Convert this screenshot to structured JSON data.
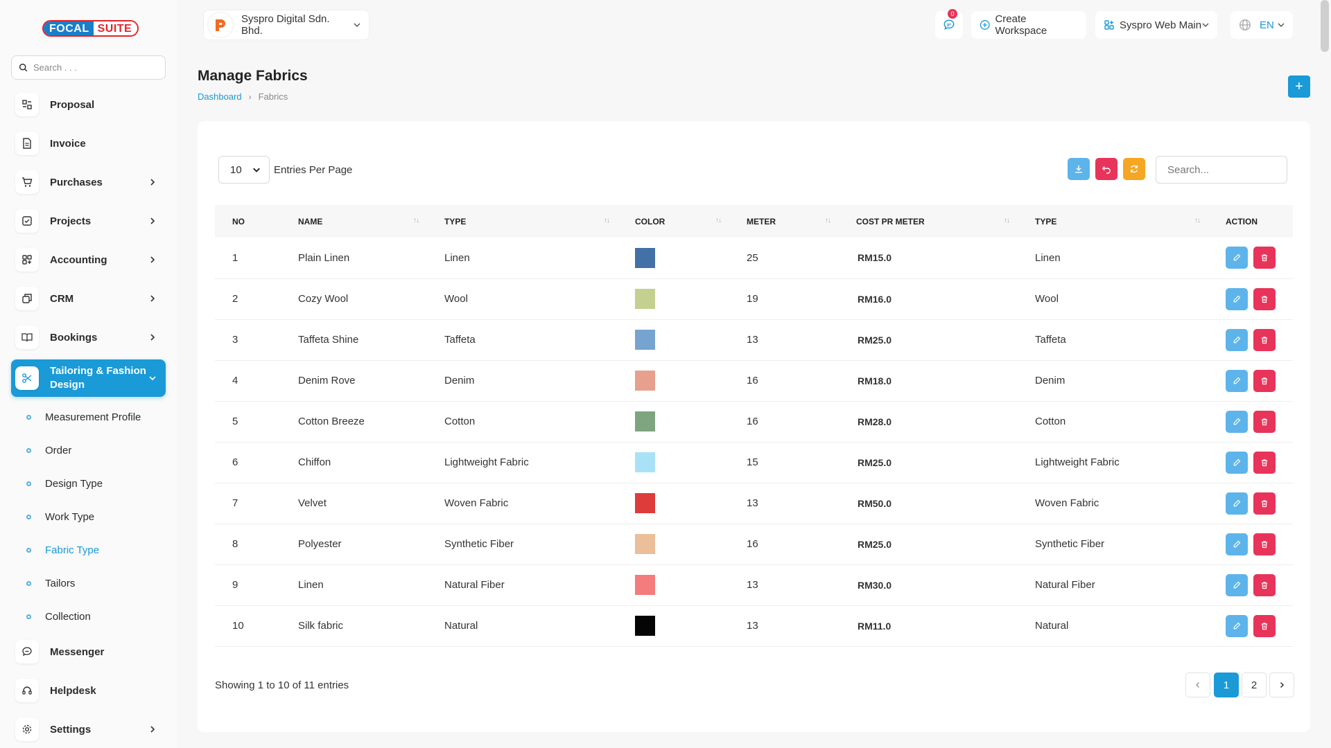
{
  "brand": {
    "part1": "FOCAL",
    "part2": "SUITE"
  },
  "sidebar": {
    "search_placeholder": "Search . . .",
    "items": [
      {
        "label": "Proposal",
        "icon": "proposal-icon"
      },
      {
        "label": "Invoice",
        "icon": "invoice-icon"
      },
      {
        "label": "Purchases",
        "icon": "cart-icon"
      },
      {
        "label": "Projects",
        "icon": "projects-icon"
      },
      {
        "label": "Accounting",
        "icon": "accounting-icon"
      },
      {
        "label": "CRM",
        "icon": "crm-icon"
      },
      {
        "label": "Bookings",
        "icon": "book-icon"
      },
      {
        "label": "Tailoring & Fashion Design",
        "icon": "scissors-icon"
      },
      {
        "label": "Messenger",
        "icon": "chat-icon"
      },
      {
        "label": "Helpdesk",
        "icon": "headset-icon"
      },
      {
        "label": "Settings",
        "icon": "gear-icon"
      }
    ],
    "subitems": [
      {
        "label": "Measurement Profile"
      },
      {
        "label": "Order"
      },
      {
        "label": "Design Type"
      },
      {
        "label": "Work Type"
      },
      {
        "label": "Fabric Type"
      },
      {
        "label": "Tailors"
      },
      {
        "label": "Collection"
      }
    ]
  },
  "topbar": {
    "company": "Syspro Digital Sdn. Bhd.",
    "notification_count": "0",
    "create_workspace": "Create Workspace",
    "workspace": "Syspro Web Main",
    "language": "EN"
  },
  "page": {
    "title": "Manage Fabrics",
    "breadcrumb": {
      "home": "Dashboard",
      "current": "Fabrics"
    },
    "add_label": "+"
  },
  "table": {
    "entries_value": "10",
    "entries_label": "Entries Per Page",
    "search_placeholder": "Search...",
    "headers": [
      "NO",
      "NAME",
      "TYPE",
      "COLOR",
      "METER",
      "COST PR METER",
      "TYPE",
      "ACTION"
    ],
    "rows": [
      {
        "no": "1",
        "name": "Plain Linen",
        "type": "Linen",
        "color": "#4470a8",
        "meter": "25",
        "cost": "RM15.0",
        "type2": "Linen"
      },
      {
        "no": "2",
        "name": "Cozy Wool",
        "type": "Wool",
        "color": "#c3d08f",
        "meter": "19",
        "cost": "RM16.0",
        "type2": "Wool"
      },
      {
        "no": "3",
        "name": "Taffeta Shine",
        "type": "Taffeta",
        "color": "#76a3cf",
        "meter": "13",
        "cost": "RM25.0",
        "type2": "Taffeta"
      },
      {
        "no": "4",
        "name": "Denim Rove",
        "type": "Denim",
        "color": "#e6a08d",
        "meter": "16",
        "cost": "RM18.0",
        "type2": "Denim"
      },
      {
        "no": "5",
        "name": "Cotton Breeze",
        "type": "Cotton",
        "color": "#7ea57f",
        "meter": "16",
        "cost": "RM28.0",
        "type2": "Cotton"
      },
      {
        "no": "6",
        "name": "Chiffon",
        "type": "Lightweight Fabric",
        "color": "#a9e2f7",
        "meter": "15",
        "cost": "RM25.0",
        "type2": "Lightweight Fabric"
      },
      {
        "no": "7",
        "name": "Velvet",
        "type": "Woven Fabric",
        "color": "#de3b3b",
        "meter": "13",
        "cost": "RM50.0",
        "type2": "Woven Fabric"
      },
      {
        "no": "8",
        "name": "Polyester",
        "type": "Synthetic Fiber",
        "color": "#eabf9a",
        "meter": "16",
        "cost": "RM25.0",
        "type2": "Synthetic Fiber"
      },
      {
        "no": "9",
        "name": "Linen",
        "type": "Natural Fiber",
        "color": "#f47c7c",
        "meter": "13",
        "cost": "RM30.0",
        "type2": "Natural Fiber"
      },
      {
        "no": "10",
        "name": "Silk fabric",
        "type": "Natural",
        "color": "#050505",
        "meter": "13",
        "cost": "RM11.0",
        "type2": "Natural"
      }
    ],
    "showing": "Showing 1 to 10 of 11 entries",
    "pages": [
      "1",
      "2"
    ],
    "current_page": "1"
  },
  "colors": {
    "accent": "#1a9ad6",
    "danger": "#e8345a",
    "warning": "#f5a623",
    "edit": "#5db4ea"
  }
}
